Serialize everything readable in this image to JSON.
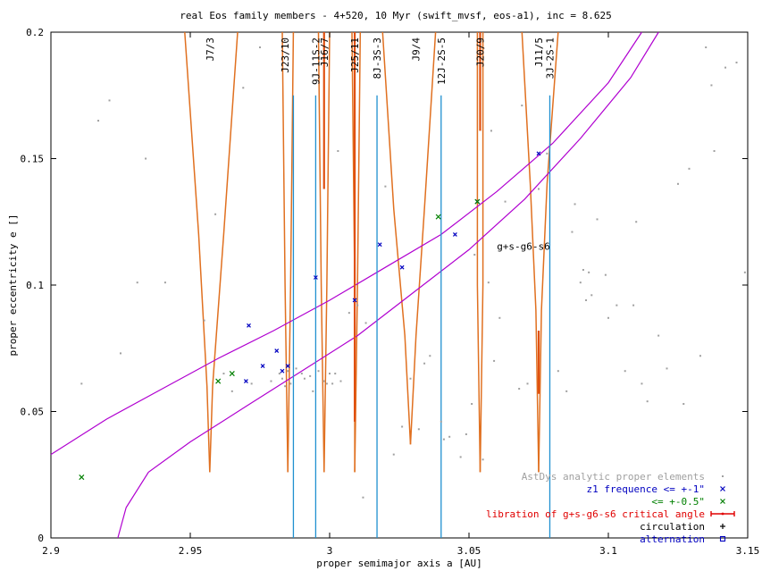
{
  "chart_data": {
    "type": "scatter",
    "title": "real Eos family members - 4+520, 10 Myr (swift_mvsf, eos-a1), inc = 8.625",
    "xlabel": "proper semimajor axis a [AU]",
    "ylabel": "proper eccentricity e []",
    "xlim": [
      2.9,
      3.15
    ],
    "ylim": [
      0,
      0.2
    ],
    "xticks": [
      "2.9",
      "2.95",
      "3",
      "3.05",
      "3.1",
      "3.15"
    ],
    "yticks": [
      "0",
      "0.05",
      "0.1",
      "0.15",
      "0.2"
    ],
    "grid": false,
    "legend_position": "bottom-right",
    "legend": [
      {
        "label": "AstDys analytic proper elements",
        "color": "#a0a0a0",
        "marker": "dot"
      },
      {
        "label": "z1 frequence <= +-1\"",
        "color": "#0000c0",
        "marker": "x"
      },
      {
        "label": "<= +-0.5\"",
        "color": "#008000",
        "marker": "x"
      },
      {
        "label": "libration of g+s-g6-s6 critical angle",
        "color": "#e00000",
        "marker": "errorbar"
      },
      {
        "label": "circulation",
        "color": "#000000",
        "marker": "plus"
      },
      {
        "label": "alternation",
        "color": "#0000c0",
        "marker": "square"
      }
    ],
    "resonance_labels": [
      {
        "label": "J7/3",
        "a": 2.957
      },
      {
        "label": "J23/10",
        "a": 2.984
      },
      {
        "label": "9J-11S-2",
        "a": 2.995
      },
      {
        "label": "J16/7",
        "a": 2.998
      },
      {
        "label": "J25/11",
        "a": 3.009
      },
      {
        "label": "8J-3S-3",
        "a": 3.017
      },
      {
        "label": "J9/4",
        "a": 3.031
      },
      {
        "label": "12J-2S-5",
        "a": 3.04
      },
      {
        "label": "J20/9",
        "a": 3.054
      },
      {
        "label": "J11/5",
        "a": 3.075
      },
      {
        "label": "3J-2S-1",
        "a": 3.079
      }
    ],
    "secular_resonance_label": "g+s-g6-s6",
    "secular_resonance_label_pos": [
      3.06,
      0.114
    ],
    "secular_lines": [
      {
        "name": "upper",
        "points": [
          [
            2.9,
            0.033
          ],
          [
            2.92,
            0.047
          ],
          [
            2.94,
            0.059
          ],
          [
            2.96,
            0.071
          ],
          [
            2.98,
            0.082
          ],
          [
            3.0,
            0.094
          ],
          [
            3.02,
            0.107
          ],
          [
            3.04,
            0.12
          ],
          [
            3.06,
            0.137
          ],
          [
            3.08,
            0.156
          ],
          [
            3.1,
            0.18
          ],
          [
            3.112,
            0.2
          ]
        ]
      },
      {
        "name": "lower",
        "points": [
          [
            2.924,
            0.0
          ],
          [
            2.927,
            0.012
          ],
          [
            2.935,
            0.026
          ],
          [
            2.95,
            0.038
          ],
          [
            2.97,
            0.052
          ],
          [
            2.99,
            0.066
          ],
          [
            3.01,
            0.08
          ],
          [
            3.03,
            0.097
          ],
          [
            3.05,
            0.114
          ],
          [
            3.07,
            0.134
          ],
          [
            3.09,
            0.158
          ],
          [
            3.108,
            0.182
          ],
          [
            3.118,
            0.2
          ]
        ]
      }
    ],
    "resonance_boundaries": [
      {
        "name": "J7/3",
        "left": [
          [
            2.948,
            0.2
          ],
          [
            2.953,
            0.12
          ],
          [
            2.956,
            0.06
          ],
          [
            2.957,
            0.026
          ]
        ],
        "right": [
          [
            2.957,
            0.026
          ],
          [
            2.958,
            0.06
          ],
          [
            2.962,
            0.12
          ],
          [
            2.967,
            0.2
          ]
        ]
      },
      {
        "name": "J23/10",
        "left": [
          [
            2.983,
            0.2
          ],
          [
            2.984,
            0.1
          ],
          [
            2.985,
            0.026
          ]
        ],
        "right": [
          [
            2.985,
            0.026
          ],
          [
            2.986,
            0.1
          ],
          [
            2.987,
            0.2
          ]
        ]
      },
      {
        "name": "J16/7",
        "left": [
          [
            2.996,
            0.2
          ],
          [
            2.997,
            0.1
          ],
          [
            2.998,
            0.026
          ]
        ],
        "right": [
          [
            2.998,
            0.026
          ],
          [
            2.999,
            0.1
          ],
          [
            3.0,
            0.2
          ]
        ]
      },
      {
        "name": "J25/11",
        "left": [
          [
            3.008,
            0.2
          ],
          [
            3.009,
            0.1
          ],
          [
            3.009,
            0.026
          ]
        ],
        "right": [
          [
            3.009,
            0.026
          ],
          [
            3.01,
            0.1
          ],
          [
            3.011,
            0.2
          ]
        ]
      },
      {
        "name": "J9/4",
        "left": [
          [
            3.019,
            0.2
          ],
          [
            3.023,
            0.13
          ],
          [
            3.027,
            0.08
          ],
          [
            3.029,
            0.037
          ]
        ],
        "right": [
          [
            3.029,
            0.037
          ],
          [
            3.031,
            0.08
          ],
          [
            3.034,
            0.13
          ],
          [
            3.038,
            0.2
          ]
        ]
      },
      {
        "name": "J20/9",
        "left": [
          [
            3.053,
            0.2
          ],
          [
            3.053,
            0.1
          ],
          [
            3.054,
            0.026
          ]
        ],
        "right": [
          [
            3.054,
            0.026
          ],
          [
            3.055,
            0.1
          ],
          [
            3.055,
            0.2
          ]
        ]
      },
      {
        "name": "J11/5",
        "left": [
          [
            3.069,
            0.2
          ],
          [
            3.072,
            0.14
          ],
          [
            3.074,
            0.09
          ],
          [
            3.075,
            0.026
          ]
        ],
        "right": [
          [
            3.075,
            0.026
          ],
          [
            3.076,
            0.09
          ],
          [
            3.078,
            0.14
          ],
          [
            3.082,
            0.2
          ]
        ]
      }
    ],
    "three_body_lines": [
      {
        "name": "9J-11S-2",
        "a": 2.995,
        "e_top": 0.175
      },
      {
        "name": "8J-3S-3",
        "a": 3.017,
        "e_top": 0.175
      },
      {
        "name": "12J-2S-5",
        "a": 3.04,
        "e_top": 0.175
      },
      {
        "name": "3J-2S-1",
        "a": 3.079,
        "e_top": 0.175
      },
      {
        "name": "J23/10",
        "a": 2.987,
        "e_top": 0.175
      }
    ],
    "libration_segments": [
      {
        "a": 2.998,
        "e_low": 0.138,
        "e_high": 0.2
      },
      {
        "a": 3.009,
        "e_low": 0.046,
        "e_high": 0.2
      },
      {
        "a": 3.054,
        "e_low": 0.161,
        "e_high": 0.2
      },
      {
        "a": 3.075,
        "e_low": 0.057,
        "e_high": 0.082
      }
    ],
    "series": [
      {
        "name": "AstDys analytic proper elements",
        "color": "#a0a0a0",
        "points": [
          [
            2.911,
            0.061
          ],
          [
            2.917,
            0.165
          ],
          [
            2.921,
            0.173
          ],
          [
            2.925,
            0.073
          ],
          [
            2.931,
            0.101
          ],
          [
            2.934,
            0.15
          ],
          [
            2.941,
            0.101
          ],
          [
            2.955,
            0.086
          ],
          [
            2.959,
            0.128
          ],
          [
            2.962,
            0.065
          ],
          [
            2.965,
            0.058
          ],
          [
            2.969,
            0.178
          ],
          [
            2.972,
            0.061
          ],
          [
            2.975,
            0.194
          ],
          [
            2.979,
            0.062
          ],
          [
            2.982,
            0.065
          ],
          [
            2.983,
            0.063
          ],
          [
            2.984,
            0.06
          ],
          [
            2.985,
            0.066
          ],
          [
            2.986,
            0.061
          ],
          [
            2.988,
            0.067
          ],
          [
            2.99,
            0.065
          ],
          [
            2.991,
            0.063
          ],
          [
            2.993,
            0.064
          ],
          [
            2.994,
            0.058
          ],
          [
            2.996,
            0.066
          ],
          [
            2.998,
            0.062
          ],
          [
            2.999,
            0.061
          ],
          [
            3.0,
            0.065
          ],
          [
            3.001,
            0.061
          ],
          [
            3.002,
            0.065
          ],
          [
            3.003,
            0.153
          ],
          [
            3.004,
            0.062
          ],
          [
            3.007,
            0.089
          ],
          [
            3.01,
            0.092
          ],
          [
            3.012,
            0.016
          ],
          [
            3.013,
            0.085
          ],
          [
            3.02,
            0.139
          ],
          [
            3.023,
            0.033
          ],
          [
            3.026,
            0.044
          ],
          [
            3.029,
            0.063
          ],
          [
            3.032,
            0.043
          ],
          [
            3.034,
            0.069
          ],
          [
            3.036,
            0.072
          ],
          [
            3.04,
            0.046
          ],
          [
            3.041,
            0.039
          ],
          [
            3.043,
            0.04
          ],
          [
            3.047,
            0.032
          ],
          [
            3.049,
            0.041
          ],
          [
            3.051,
            0.053
          ],
          [
            3.052,
            0.112
          ],
          [
            3.055,
            0.031
          ],
          [
            3.057,
            0.101
          ],
          [
            3.058,
            0.161
          ],
          [
            3.059,
            0.07
          ],
          [
            3.061,
            0.087
          ],
          [
            3.063,
            0.133
          ],
          [
            3.068,
            0.059
          ],
          [
            3.069,
            0.171
          ],
          [
            3.071,
            0.061
          ],
          [
            3.075,
            0.138
          ],
          [
            3.078,
            0.152
          ],
          [
            3.082,
            0.066
          ],
          [
            3.085,
            0.058
          ],
          [
            3.087,
            0.121
          ],
          [
            3.088,
            0.132
          ],
          [
            3.09,
            0.101
          ],
          [
            3.091,
            0.106
          ],
          [
            3.092,
            0.094
          ],
          [
            3.093,
            0.105
          ],
          [
            3.094,
            0.096
          ],
          [
            3.096,
            0.126
          ],
          [
            3.099,
            0.104
          ],
          [
            3.1,
            0.087
          ],
          [
            3.103,
            0.092
          ],
          [
            3.106,
            0.066
          ],
          [
            3.109,
            0.092
          ],
          [
            3.11,
            0.125
          ],
          [
            3.112,
            0.061
          ],
          [
            3.114,
            0.054
          ],
          [
            3.118,
            0.08
          ],
          [
            3.121,
            0.067
          ],
          [
            3.125,
            0.14
          ],
          [
            3.127,
            0.053
          ],
          [
            3.129,
            0.146
          ],
          [
            3.133,
            0.072
          ],
          [
            3.135,
            0.194
          ],
          [
            3.137,
            0.179
          ],
          [
            3.138,
            0.153
          ],
          [
            3.142,
            0.186
          ],
          [
            3.146,
            0.188
          ],
          [
            3.149,
            0.105
          ]
        ]
      },
      {
        "name": "z1 frequence <= +-1\"",
        "color": "#0000c0",
        "points": [
          [
            2.97,
            0.062
          ],
          [
            2.971,
            0.084
          ],
          [
            2.976,
            0.068
          ],
          [
            2.981,
            0.074
          ],
          [
            2.983,
            0.066
          ],
          [
            2.985,
            0.068
          ],
          [
            2.995,
            0.103
          ],
          [
            3.009,
            0.094
          ],
          [
            3.018,
            0.116
          ],
          [
            3.026,
            0.107
          ],
          [
            3.045,
            0.12
          ],
          [
            3.053,
            0.133
          ],
          [
            3.075,
            0.152
          ]
        ]
      },
      {
        "name": "<= +-0.5\"",
        "color": "#008000",
        "points": [
          [
            2.911,
            0.024
          ],
          [
            2.96,
            0.062
          ],
          [
            2.965,
            0.065
          ],
          [
            3.039,
            0.127
          ],
          [
            3.053,
            0.133
          ]
        ]
      }
    ]
  }
}
